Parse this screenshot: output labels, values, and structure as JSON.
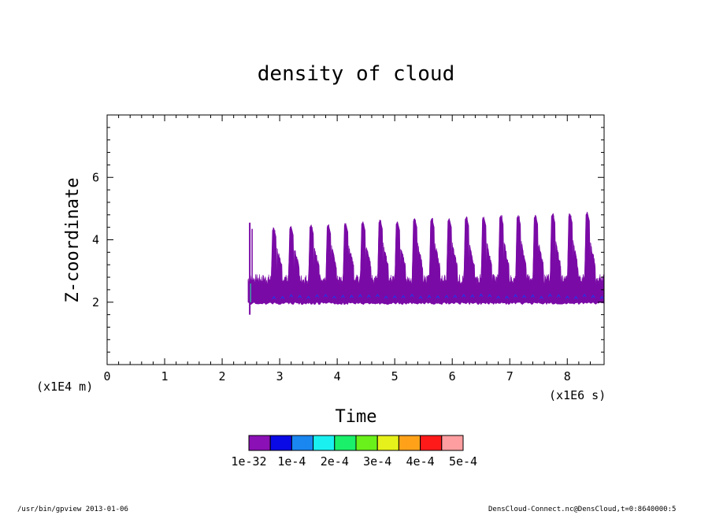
{
  "chart_data": {
    "type": "area",
    "title": "density of cloud",
    "xlabel": "Time",
    "ylabel": "Z-coordinate",
    "x_scale_label": "(x1E6 s)",
    "y_scale_label": "(x1E4 m)",
    "xlim": [
      0,
      8.64
    ],
    "ylim": [
      0,
      8
    ],
    "x_ticks": [
      "0",
      "1",
      "2",
      "3",
      "4",
      "5",
      "6",
      "7",
      "8"
    ],
    "y_ticks": [
      "2",
      "4",
      "6"
    ],
    "cloud_start_x": 2.45,
    "cloud_base": 2.0,
    "first_spike": {
      "x": 2.48,
      "top": 4.55,
      "bottom": 1.6
    },
    "cloud_peaks": [
      {
        "x": 2.9,
        "top": 4.4
      },
      {
        "x": 3.2,
        "top": 4.45
      },
      {
        "x": 3.55,
        "top": 4.5
      },
      {
        "x": 3.85,
        "top": 4.5
      },
      {
        "x": 4.15,
        "top": 4.55
      },
      {
        "x": 4.45,
        "top": 4.6
      },
      {
        "x": 4.75,
        "top": 4.65
      },
      {
        "x": 5.05,
        "top": 4.6
      },
      {
        "x": 5.35,
        "top": 4.7
      },
      {
        "x": 5.65,
        "top": 4.7
      },
      {
        "x": 5.95,
        "top": 4.7
      },
      {
        "x": 6.25,
        "top": 4.75
      },
      {
        "x": 6.55,
        "top": 4.75
      },
      {
        "x": 6.85,
        "top": 4.8
      },
      {
        "x": 7.15,
        "top": 4.8
      },
      {
        "x": 7.45,
        "top": 4.8
      },
      {
        "x": 7.75,
        "top": 4.85
      },
      {
        "x": 8.05,
        "top": 4.85
      },
      {
        "x": 8.35,
        "top": 4.9
      }
    ],
    "colorbar": {
      "labels": [
        "1e-32",
        "1e-4",
        "2e-4",
        "3e-4",
        "4e-4",
        "5e-4"
      ],
      "colors": [
        "#8b10b5",
        "#0a0ae6",
        "#1a86f0",
        "#1af0f0",
        "#1af06a",
        "#6af01a",
        "#e6f01a",
        "#ffa21a",
        "#ff1a1a",
        "#ff9ea0"
      ]
    },
    "colors": {
      "fill": "#7a0aa6",
      "blue_marks": "#1a3af0"
    }
  },
  "footer": {
    "left": "/usr/bin/gpview  2013-01-06",
    "right": "DensCloud-Connect.nc@DensCloud,t=0:8640000:5"
  }
}
